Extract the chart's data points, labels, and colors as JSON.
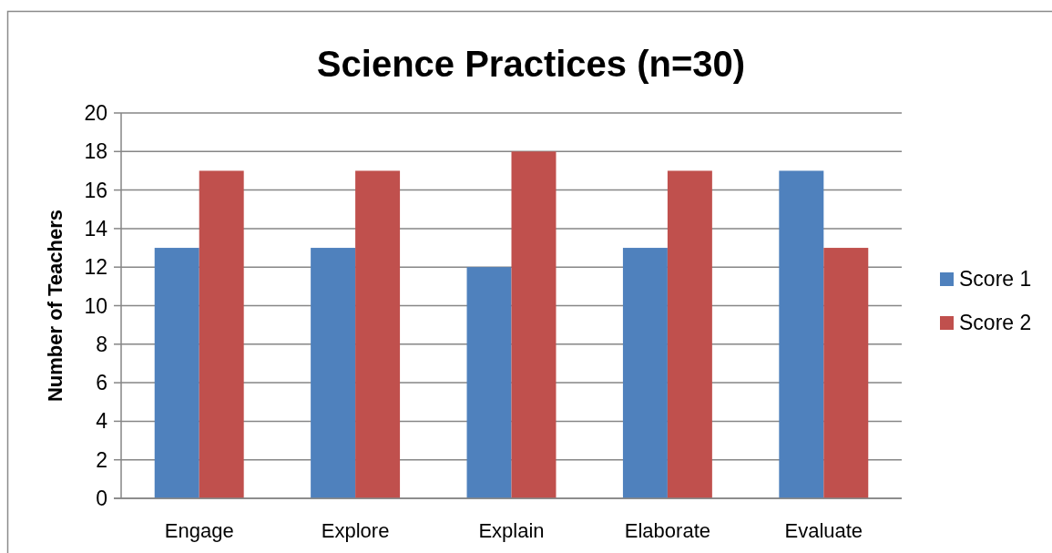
{
  "chart_data": {
    "type": "bar",
    "title": "Science Practices (n=30)",
    "ylabel": "Number of Teachers",
    "categories": [
      "Engage",
      "Explore",
      "Explain",
      "Elaborate",
      "Evaluate"
    ],
    "series": [
      {
        "name": "Score 1",
        "color": "#4f81bd",
        "values": [
          13,
          13,
          12,
          13,
          17
        ]
      },
      {
        "name": "Score 2",
        "color": "#c0504d",
        "values": [
          17,
          17,
          18,
          17,
          13
        ]
      }
    ],
    "ylim": [
      0,
      20
    ],
    "yticks": [
      0,
      2,
      4,
      6,
      8,
      10,
      12,
      14,
      16,
      18,
      20
    ],
    "grid": "y",
    "legend": "right"
  }
}
